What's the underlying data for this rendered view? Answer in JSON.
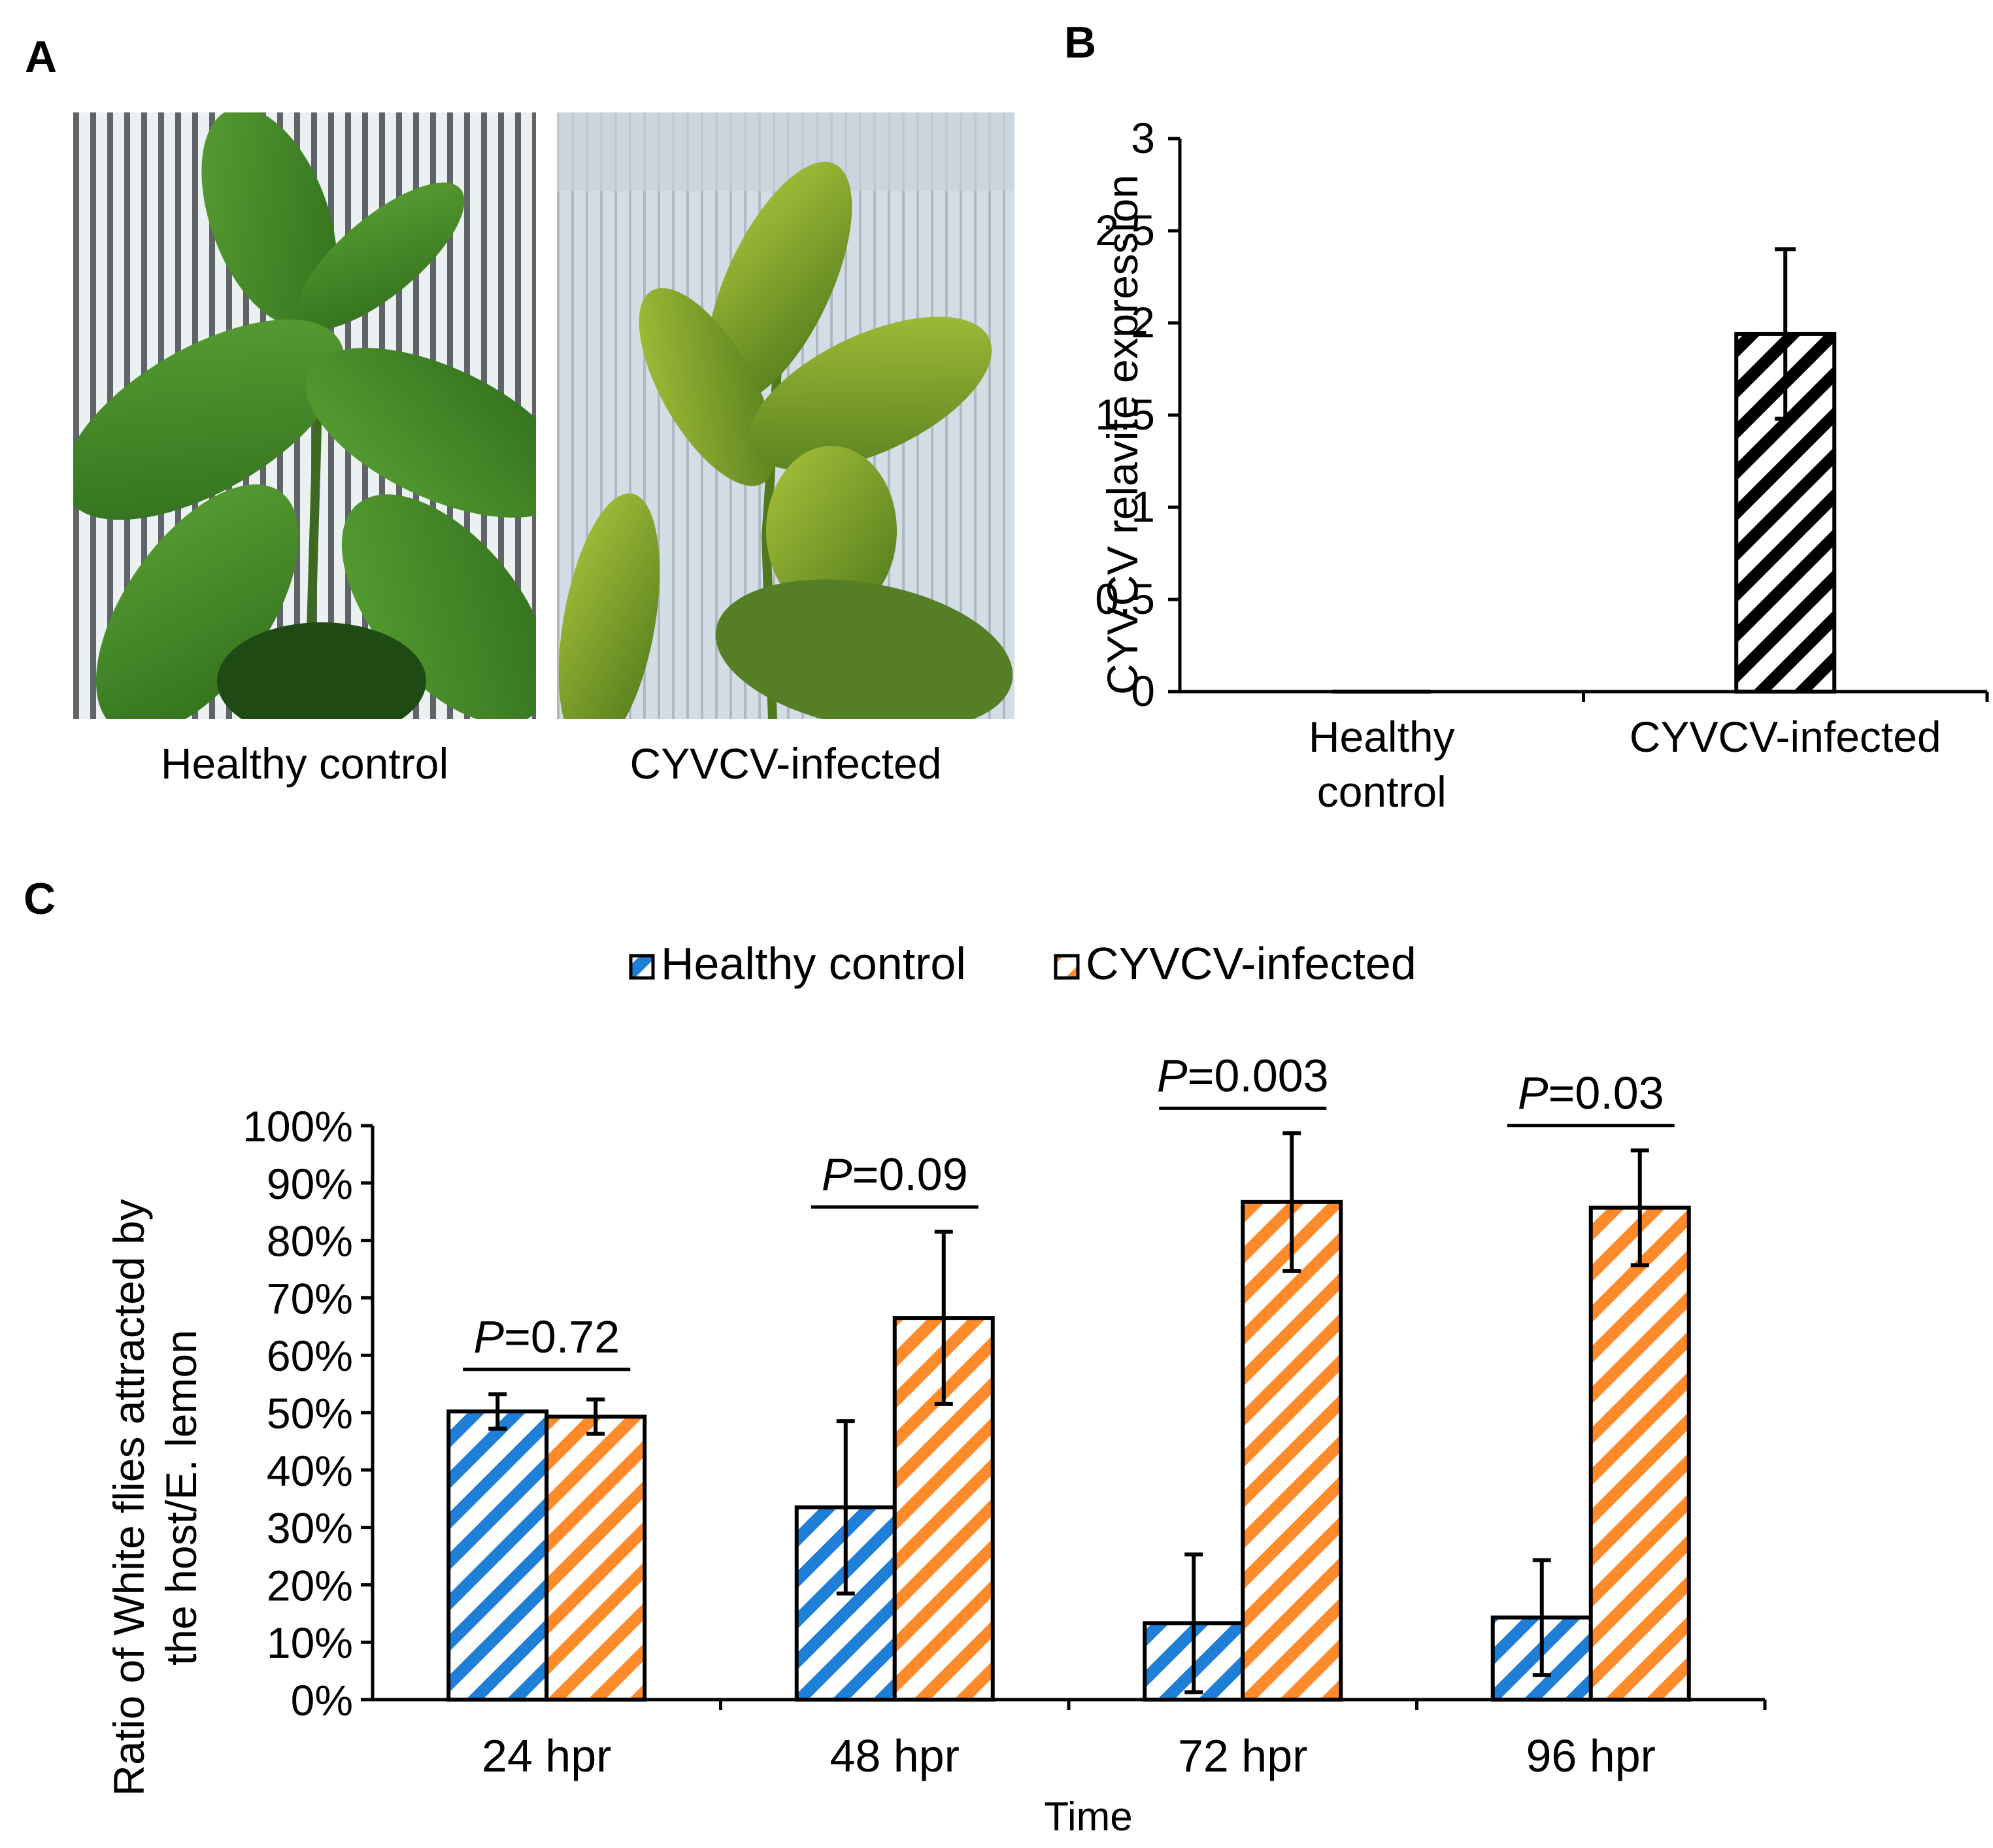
{
  "panels": {
    "a": {
      "letter": "A",
      "caption_left": "Healthy control",
      "caption_right": "CYVCV-infected"
    },
    "b": {
      "letter": "B"
    },
    "c": {
      "letter": "C"
    }
  },
  "colors": {
    "healthy_stripe": "#1f7ed6",
    "infected_stripe": "#ff8a2a",
    "panel_b_stripe": "#000000"
  },
  "chart_data": [
    {
      "type": "bar",
      "panel": "B",
      "categories": [
        "Healthy control",
        "CYVCV-infected"
      ],
      "values": [
        0,
        1.94
      ],
      "errors": [
        0,
        0.46
      ],
      "ylabel": "CYVCV relavite expression",
      "xlabel": "",
      "ylim": [
        0,
        3
      ],
      "yticks": [
        "0",
        "0.5",
        "1",
        "1.5",
        "2",
        "2.5",
        "3"
      ],
      "category_lines": [
        [
          "Healthy",
          "control"
        ],
        [
          "CYVCV-infected"
        ]
      ]
    },
    {
      "type": "bar",
      "panel": "C",
      "categories": [
        "24 hpr",
        "48 hpr",
        "72 hpr",
        "96 hpr"
      ],
      "series": [
        {
          "name": "Healthy control",
          "values": [
            50.2,
            33.5,
            13.3,
            14.3
          ],
          "errors": [
            3,
            15,
            12,
            10
          ]
        },
        {
          "name": "CYVCV-infected",
          "values": [
            49.3,
            66.5,
            86.7,
            85.7
          ],
          "errors": [
            3,
            15,
            12,
            10
          ]
        }
      ],
      "p_values": [
        {
          "prefix": "P",
          "value": "=0.72"
        },
        {
          "prefix": "P",
          "value": "=0.09"
        },
        {
          "prefix": "P",
          "value": "=0.003"
        },
        {
          "prefix": "P",
          "value": "=0.03"
        }
      ],
      "ylabel_lines": [
        "Ratio of White flies attracted by",
        "the host/E. lemon"
      ],
      "xlabel": "Time",
      "ylim": [
        0,
        100
      ],
      "yticks": [
        "0%",
        "10%",
        "20%",
        "30%",
        "40%",
        "50%",
        "60%",
        "70%",
        "80%",
        "90%",
        "100%"
      ],
      "legend_position": "top-center"
    }
  ]
}
